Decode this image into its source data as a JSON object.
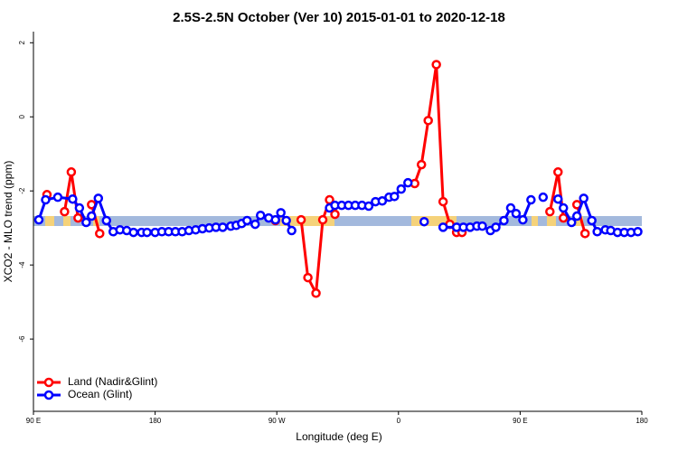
{
  "chart_data": {
    "type": "line",
    "title": "2.5S-2.5N October (Ver 10)   2015-01-01 to 2020-12-18",
    "x_label": "Longitude (deg E)",
    "y_label": "XCO2 - MLO trend (ppm)",
    "xlim": [
      90,
      540
    ],
    "ylim": [
      -7.95,
      2.3
    ],
    "xticks": [
      {
        "value": 90,
        "label": "90 E"
      },
      180,
      {
        "value": 270,
        "label": "90 W"
      },
      {
        "value": 360,
        "label": "0"
      },
      {
        "value": 450,
        "label": "90 E"
      },
      {
        "value": 540,
        "label": "180"
      }
    ],
    "yticks": [
      2,
      0,
      -2,
      -4,
      -6
    ],
    "legend": "bottom-left",
    "series": [
      {
        "name": "Land (Nadir&Glint)",
        "color": "#ff0000",
        "x": [
          100,
          null,
          113,
          118,
          123,
          null,
          133,
          139,
          null,
          269,
          null,
          288,
          293,
          299,
          304,
          309,
          313,
          null,
          372,
          377,
          382,
          388,
          393,
          398,
          403,
          407,
          null,
          472,
          478,
          482,
          null,
          492,
          498
        ],
        "values": [
          -2.1,
          null,
          -2.56,
          -1.49,
          -2.73,
          null,
          -2.37,
          -3.15,
          null,
          -2.8,
          null,
          -2.78,
          -4.34,
          -4.76,
          -2.78,
          -2.24,
          -2.63,
          null,
          -1.8,
          -1.29,
          -0.1,
          1.41,
          -2.29,
          -2.9,
          -3.12,
          -3.12,
          null,
          -2.56,
          -1.49,
          -2.73,
          null,
          -2.37,
          -3.15
        ]
      },
      {
        "name": "Ocean (Glint)",
        "color": "#0000ff",
        "x": [
          94,
          99,
          108,
          119,
          124,
          129,
          133,
          138,
          144,
          149,
          154,
          159,
          164,
          170,
          174,
          180,
          185,
          190,
          195,
          200,
          205,
          210,
          215,
          220,
          225,
          230,
          236,
          240,
          244,
          248,
          254,
          258,
          264,
          269,
          273,
          277,
          281,
          null,
          309,
          313,
          318,
          323,
          328,
          333,
          338,
          343,
          348,
          353,
          357,
          362,
          367,
          null,
          379,
          null,
          393,
          403,
          408,
          413,
          418,
          422,
          428,
          432,
          438,
          443,
          447,
          452,
          458,
          null,
          467,
          null,
          478,
          482,
          488,
          492,
          497,
          503,
          507,
          513,
          517,
          522,
          527,
          532,
          537
        ],
        "values": [
          -2.78,
          -2.24,
          -2.17,
          -2.22,
          -2.46,
          -2.85,
          -2.68,
          -2.2,
          -2.8,
          -3.1,
          -3.05,
          -3.07,
          -3.12,
          -3.12,
          -3.12,
          -3.12,
          -3.1,
          -3.1,
          -3.1,
          -3.1,
          -3.07,
          -3.05,
          -3.02,
          -3.0,
          -2.98,
          -2.98,
          -2.95,
          -2.93,
          -2.88,
          -2.8,
          -2.9,
          -2.66,
          -2.73,
          -2.78,
          -2.59,
          -2.8,
          -3.07,
          null,
          -2.46,
          -2.39,
          -2.39,
          -2.39,
          -2.39,
          -2.39,
          -2.41,
          -2.29,
          -2.27,
          -2.17,
          -2.15,
          -1.95,
          -1.78,
          null,
          -2.83,
          null,
          -2.98,
          -2.98,
          -2.98,
          -2.98,
          -2.95,
          -2.95,
          -3.07,
          -2.98,
          -2.8,
          -2.46,
          -2.61,
          -2.78,
          -2.24,
          null,
          -2.17,
          null,
          -2.22,
          -2.46,
          -2.85,
          -2.68,
          -2.2,
          -2.8,
          -3.1,
          -3.05,
          -3.07,
          -3.12,
          -3.12,
          -3.12,
          -3.1
        ]
      }
    ]
  }
}
